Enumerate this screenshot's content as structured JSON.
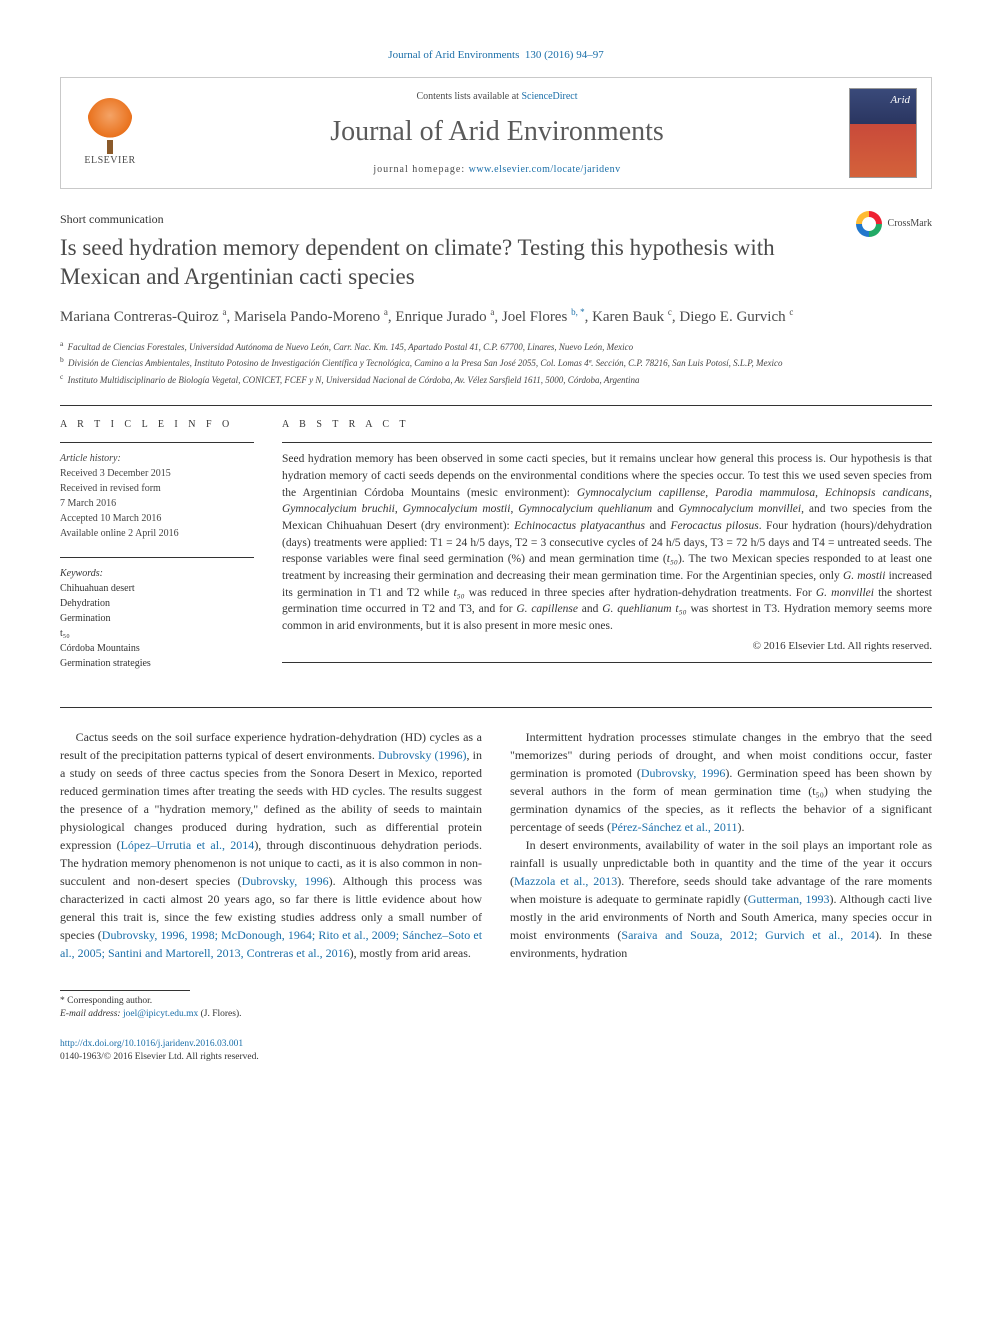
{
  "citation": {
    "journal": "Journal of Arid Environments",
    "vol_issue": "130 (2016) 94–97",
    "color": "#1a6ea8"
  },
  "header": {
    "contents_prefix": "Contents lists available at ",
    "contents_link": "ScienceDirect",
    "journal_name": "Journal of Arid Environments",
    "homepage_prefix": "journal homepage: ",
    "homepage_url": "www.elsevier.com/locate/jaridenv",
    "publisher": "ELSEVIER",
    "cover_label": "Arid"
  },
  "article": {
    "type": "Short communication",
    "crossmark": "CrossMark",
    "title": "Is seed hydration memory dependent on climate? Testing this hypothesis with Mexican and Argentinian cacti species",
    "authors_html": "Mariana Contreras-Quiroz <sup>a</sup>, Marisela Pando-Moreno <sup>a</sup>, Enrique Jurado <sup>a</sup>, Joel Flores <sup><a>b, *</a></sup>, Karen Bauk <sup>c</sup>, Diego E. Gurvich <sup>c</sup>"
  },
  "affiliations": [
    {
      "sup": "a",
      "text": "Facultad de Ciencias Forestales, Universidad Autónoma de Nuevo León, Carr. Nac. Km. 145, Apartado Postal 41, C.P. 67700, Linares, Nuevo León, Mexico"
    },
    {
      "sup": "b",
      "text": "División de Ciencias Ambientales, Instituto Potosino de Investigación Científica y Tecnológica, Camino a la Presa San José 2055, Col. Lomas 4ª. Sección, C.P. 78216, San Luis Potosí, S.L.P, Mexico"
    },
    {
      "sup": "c",
      "text": "Instituto Multidisciplinario de Biología Vegetal, CONICET, FCEF y N, Universidad Nacional de Córdoba, Av. Vélez Sarsfield 1611, 5000, Córdoba, Argentina"
    }
  ],
  "info": {
    "heading": "A R T I C L E  I N F O",
    "history_label": "Article history:",
    "history": [
      "Received 3 December 2015",
      "Received in revised form",
      "7 March 2016",
      "Accepted 10 March 2016",
      "Available online 2 April 2016"
    ],
    "keywords_label": "Keywords:",
    "keywords": [
      "Chihuahuan desert",
      "Dehydration",
      "Germination",
      "t₅₀",
      "Córdoba Mountains",
      "Germination strategies"
    ]
  },
  "abstract": {
    "heading": "A B S T R A C T",
    "text": "Seed hydration memory has been observed in some cacti species, but it remains unclear how general this process is. Our hypothesis is that hydration memory of cacti seeds depends on the environmental conditions where the species occur. To test this we used seven species from the Argentinian Córdoba Mountains (mesic environment): Gymnocalycium capillense, Parodia mammulosa, Echinopsis candicans, Gymnocalycium bruchii, Gymnocalycium mostii, Gymnocalycium quehlianum and Gymnocalycium monvillei, and two species from the Mexican Chihuahuan Desert (dry environment): Echinocactus platyacanthus and Ferocactus pilosus. Four hydration (hours)/dehydration (days) treatments were applied: T1 = 24 h/5 days, T2 = 3 consecutive cycles of 24 h/5 days, T3 = 72 h/5 days and T4 = untreated seeds. The response variables were final seed germination (%) and mean germination time (t₅₀). The two Mexican species responded to at least one treatment by increasing their germination and decreasing their mean germination time. For the Argentinian species, only G. mostii increased its germination in T1 and T2 while t₅₀ was reduced in three species after hydration-dehydration treatments. For G. monvillei the shortest germination time occurred in T2 and T3, and for G. capillense and G. quehlianum t₅₀ was shortest in T3. Hydration memory seems more common in arid environments, but it is also present in more mesic ones.",
    "copyright": "© 2016 Elsevier Ltd. All rights reserved."
  },
  "body": {
    "p1_a": "Cactus seeds on the soil surface experience hydration-dehydration (HD) cycles as a result of the precipitation patterns typical of desert environments. ",
    "p1_ref1": "Dubrovsky (1996)",
    "p1_b": ", in a study on seeds of three cactus species from the Sonora Desert in Mexico, reported reduced germination times after treating the seeds with HD cycles. The results suggest the presence of a \"hydration memory,\" defined as the ability of seeds to maintain physiological changes produced during hydration, such as differential protein expression (",
    "p1_ref2": "López–Urrutia et al., 2014",
    "p1_c": "), through discontinuous dehydration periods. The hydration memory phenomenon is not unique to cacti, as it is also common in non-succulent and non-desert species (",
    "p1_ref3": "Dubrovsky, 1996",
    "p1_d": "). Although this process was characterized in cacti almost 20 years ago, so far there is little evidence about how general this trait is, since the few existing studies address only a small number of species (",
    "p1_ref4": "Dubrovsky, 1996, 1998;",
    "p1_ref4b": "McDonough, 1964; Rito et al., 2009; Sánchez–Soto et al., 2005; Santini and Martorell, 2013, Contreras et al., 2016",
    "p1_e": "), mostly from arid areas.",
    "p2_a": "Intermittent hydration processes stimulate changes in the embryo that the seed \"memorizes\" during periods of drought, and when moist conditions occur, faster germination is promoted (",
    "p2_ref1": "Dubrovsky, 1996",
    "p2_b": "). Germination speed has been shown by several authors in the form of mean germination time (t₅₀) when studying the germination dynamics of the species, as it reflects the behavior of a significant percentage of seeds (",
    "p2_ref2": "Pérez-Sánchez et al., 2011",
    "p2_c": ").",
    "p3_a": "In desert environments, availability of water in the soil plays an important role as rainfall is usually unpredictable both in quantity and the time of the year it occurs (",
    "p3_ref1": "Mazzola et al., 2013",
    "p3_b": "). Therefore, seeds should take advantage of the rare moments when moisture is adequate to germinate rapidly (",
    "p3_ref2": "Gutterman, 1993",
    "p3_c": "). Although cacti live mostly in the arid environments of North and South America, many species occur in moist environments (",
    "p3_ref3": "Saraiva and Souza, 2012; Gurvich et al., 2014",
    "p3_d": "). In these environments, hydration"
  },
  "footnote": {
    "corresponding": "* Corresponding author.",
    "email_label": "E-mail address: ",
    "email": "joel@ipicyt.edu.mx",
    "email_suffix": " (J. Flores)."
  },
  "doi": {
    "url": "http://dx.doi.org/10.1016/j.jaridenv.2016.03.001",
    "issn_line": "0140-1963/© 2016 Elsevier Ltd. All rights reserved."
  },
  "colors": {
    "link": "#1a6ea8",
    "text": "#333333",
    "rule": "#333333",
    "elsevier_orange": "#e9711c"
  }
}
